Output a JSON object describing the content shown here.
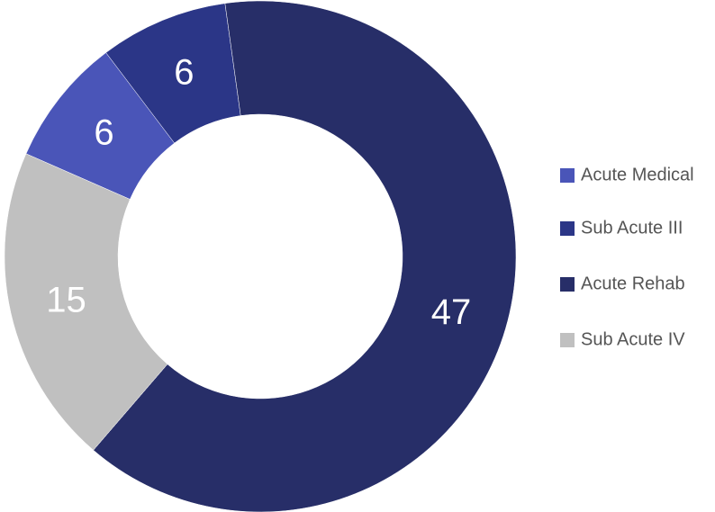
{
  "chart_data": {
    "type": "donut",
    "categories": [
      "Acute Medical",
      "Sub Acute III",
      "Acute Rehab",
      "Sub Acute IV"
    ],
    "values": [
      6,
      6,
      47,
      15
    ],
    "colors": [
      "#4a55b8",
      "#2b3687",
      "#272e68",
      "#c0c0c0"
    ],
    "legend": "right"
  }
}
